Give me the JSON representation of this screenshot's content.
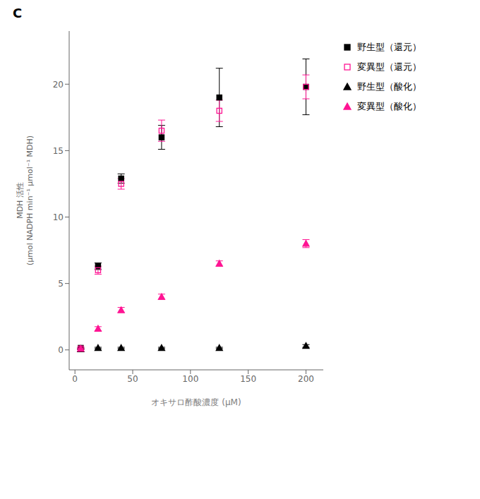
{
  "chart_data": {
    "type": "scatter",
    "title": "C",
    "xlabel": "オキサロ酢酸濃度 (μM)",
    "ylabel": "MDH 活性\n(μmol NADPH min⁻¹ μmol⁻¹ MDH)",
    "x": [
      5,
      20,
      40,
      75,
      125,
      200
    ],
    "series": [
      {
        "name": "野生型（還元）",
        "color": "#000000",
        "marker": "square",
        "values": [
          0.15,
          6.3,
          12.9,
          16.0,
          19.0,
          19.8
        ],
        "errors": [
          0.05,
          0.25,
          0.35,
          0.9,
          2.2,
          2.1
        ]
      },
      {
        "name": "変異型（還元）",
        "color": "#FF1493",
        "marker": "open-square",
        "values": [
          0.1,
          6.0,
          12.5,
          16.5,
          18.0,
          19.8
        ],
        "errors": [
          0.05,
          0.3,
          0.4,
          0.8,
          0.8,
          0.9
        ]
      },
      {
        "name": "野生型（酸化）",
        "color": "#000000",
        "marker": "triangle",
        "values": [
          0.05,
          0.15,
          0.15,
          0.15,
          0.15,
          0.3
        ],
        "errors": [
          0.02,
          0.05,
          0.05,
          0.05,
          0.05,
          0.1
        ]
      },
      {
        "name": "変異型（酸化）",
        "color": "#FF1493",
        "marker": "triangle",
        "values": [
          0.1,
          1.6,
          3.0,
          4.0,
          6.5,
          8.0
        ],
        "errors": [
          0.05,
          0.15,
          0.2,
          0.2,
          0.2,
          0.3
        ]
      }
    ],
    "xlim": [
      -5,
      215
    ],
    "ylim": [
      -1.5,
      24
    ],
    "xticks": [
      0,
      50,
      100,
      150,
      200
    ],
    "yticks": [
      0,
      5,
      10,
      15,
      20
    ],
    "legend": "right"
  }
}
